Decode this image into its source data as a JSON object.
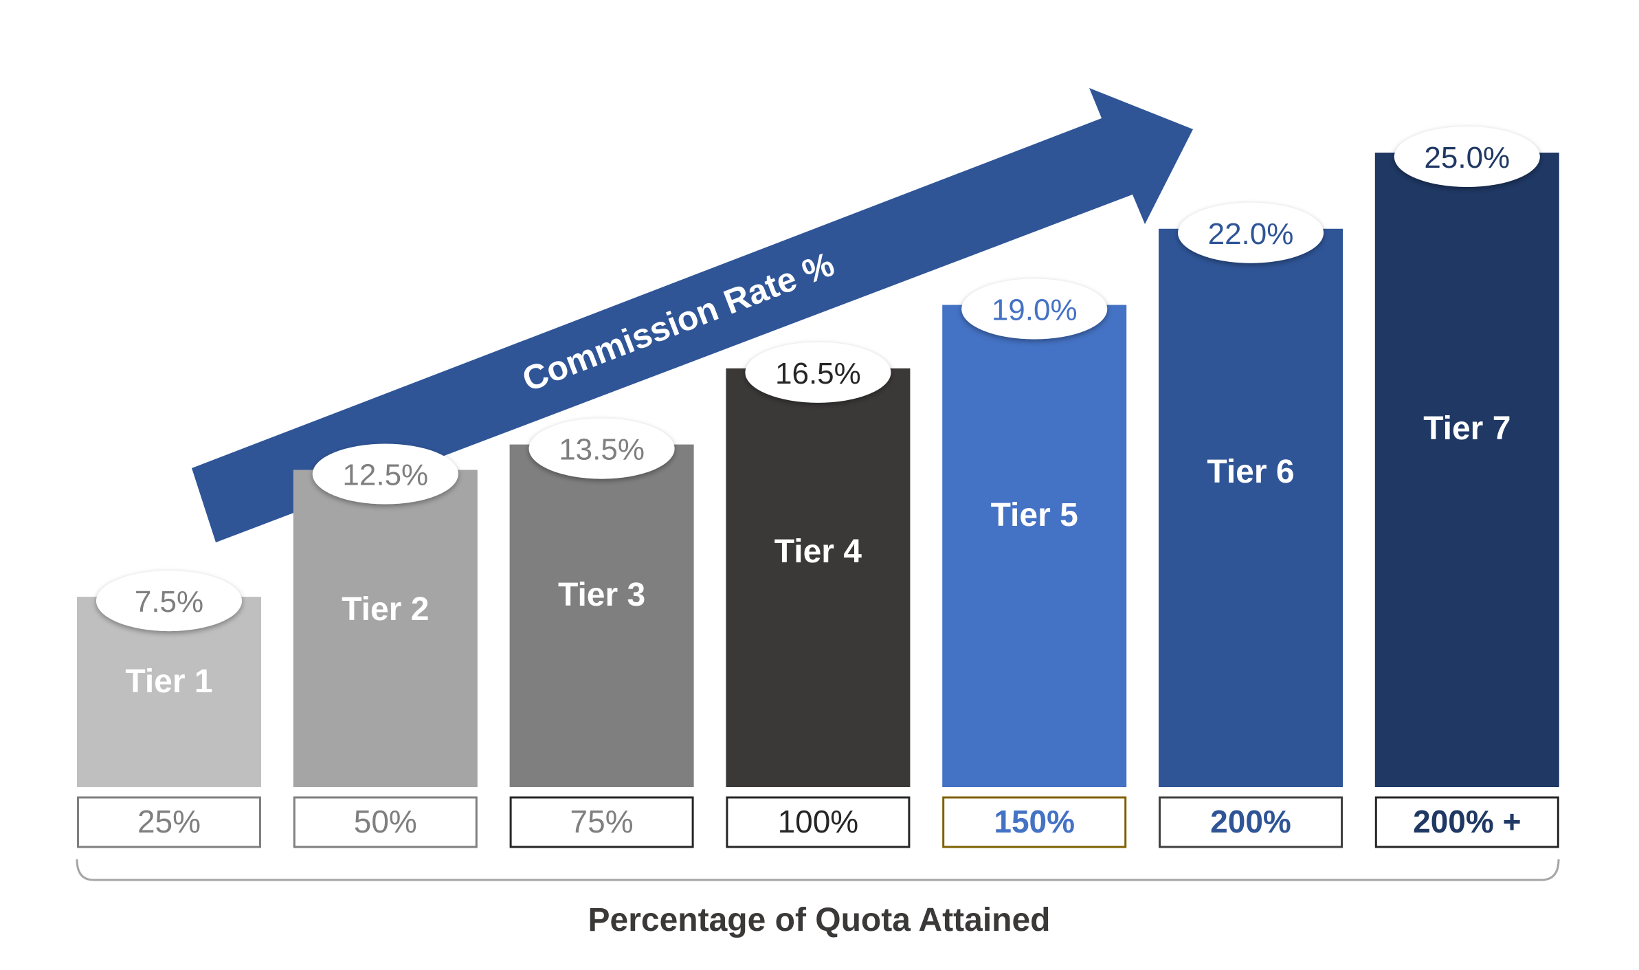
{
  "chart_data": {
    "type": "bar",
    "categories": [
      "Tier 1",
      "Tier 2",
      "Tier 3",
      "Tier 4",
      "Tier 5",
      "Tier 6",
      "Tier 7"
    ],
    "values": [
      7.5,
      12.5,
      13.5,
      16.5,
      19.0,
      22.0,
      25.0
    ],
    "value_labels": [
      "7.5%",
      "12.5%",
      "13.5%",
      "16.5%",
      "19.0%",
      "22.0%",
      "25.0%"
    ],
    "quota_labels": [
      "25%",
      "50%",
      "75%",
      "100%",
      "150%",
      "200%",
      "200% +"
    ],
    "arrow_label": "Commission Rate %",
    "xlabel": "Percentage of Quota Attained",
    "ylabel": "",
    "ylim": [
      0,
      25
    ],
    "grid": false,
    "legend": "none",
    "colors": {
      "bars": [
        "#bfbfbf",
        "#a5a5a5",
        "#7f7f7f",
        "#3b3838",
        "#4472c4",
        "#2f5597",
        "#1f3864"
      ],
      "bar_label_text": "#ffffff",
      "value_text": [
        "#7f7f7f",
        "#7f7f7f",
        "#7f7f7f",
        "#262626",
        "#4472c4",
        "#2f5597",
        "#1f3864"
      ],
      "quota_text": [
        "#7f7f7f",
        "#7f7f7f",
        "#7f7f7f",
        "#262626",
        "#4472c4",
        "#2f5597",
        "#1f3864"
      ],
      "quota_border": [
        "#7f7f7f",
        "#7f7f7f",
        "#262626",
        "#262626",
        "#7f6000",
        "#404040",
        "#262626"
      ],
      "arrow": "#2f5597",
      "bracket": "#a6a6a6",
      "xlabel_text": "#3b3838"
    }
  }
}
